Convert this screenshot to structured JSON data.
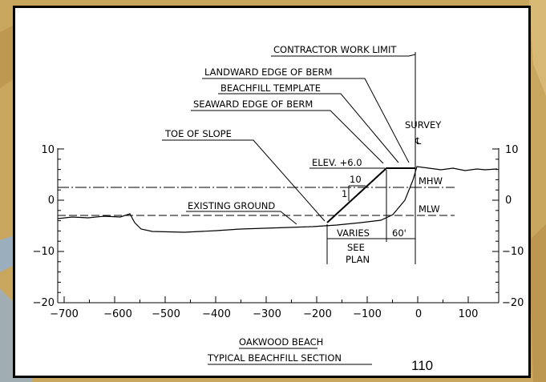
{
  "page_number": "110",
  "colors": {
    "background": "#c9a65e",
    "background_accent": "#8fb0d6",
    "panel": "#ffffff",
    "ink": "#000000"
  },
  "section": {
    "title": "OAKWOOD BEACH",
    "subtitle": "TYPICAL BEACHFILL SECTION",
    "callouts": {
      "contractor_work_limit": "CONTRACTOR WORK LIMIT",
      "landward_edge": "LANDWARD EDGE OF BERM",
      "beachfill_template": "BEACHFILL TEMPLATE",
      "seaward_edge": "SEAWARD EDGE OF BERM",
      "toe_of_slope": "TOE OF SLOPE",
      "existing_ground": "EXISTING GROUND",
      "elevation": "ELEV. +6.0",
      "survey": "SURVEY",
      "survey_cl": "℄",
      "mhw": "MHW",
      "mlw": "MLW",
      "slope_run": "10",
      "slope_rise": "1",
      "varies": "VARIES",
      "see": "SEE",
      "plan": "PLAN",
      "width_60": "60'"
    },
    "x_ticks": [
      "−700",
      "−600",
      "−500",
      "−400",
      "−300",
      "−200",
      "−100",
      "0",
      "100"
    ],
    "y_ticks_left": [
      "10",
      "0",
      "−10",
      "−20"
    ],
    "y_ticks_right": [
      "10",
      "0",
      "−10",
      "−20"
    ]
  }
}
